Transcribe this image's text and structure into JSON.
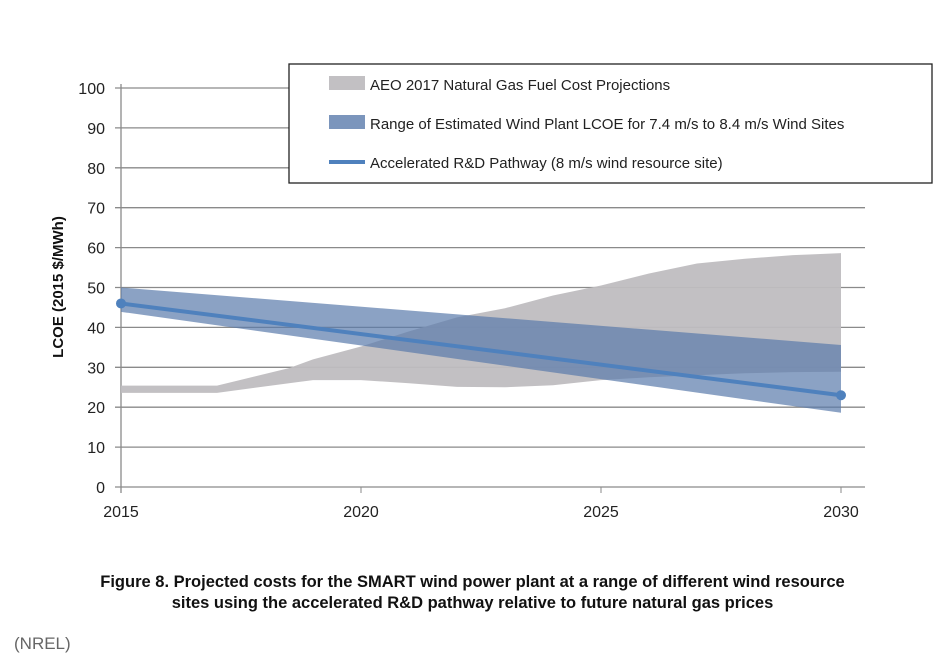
{
  "chart_data": {
    "type": "area",
    "title": "",
    "xlabel": "",
    "ylabel": "LCOE (2015 $/MWh)",
    "xlim": [
      2015,
      2030
    ],
    "ylim": [
      0,
      100
    ],
    "xticks": [
      2015,
      2020,
      2025,
      2030
    ],
    "yticks": [
      0,
      10,
      20,
      30,
      40,
      50,
      60,
      70,
      80,
      90,
      100
    ],
    "grid": "horizontal",
    "legend_position": "top-right",
    "series": [
      {
        "name": "AEO 2017 Natural Gas Fuel Cost Projections",
        "kind": "band",
        "color": "#bfbdc0",
        "x": [
          2015,
          2017,
          2018.5,
          2019,
          2020,
          2021,
          2022,
          2023,
          2024,
          2025,
          2026,
          2027,
          2028,
          2029,
          2030
        ],
        "lower": [
          23.6,
          23.6,
          26,
          26.8,
          26.8,
          26,
          25.1,
          25,
          25.5,
          26.8,
          27.5,
          28,
          28.5,
          28.8,
          28.9
        ],
        "upper": [
          25.4,
          25.4,
          29.8,
          32,
          35.2,
          39,
          42.5,
          44.8,
          48,
          50.5,
          53.5,
          56,
          57.2,
          58.1,
          58.6
        ]
      },
      {
        "name": "Range of Estimated Wind Plant LCOE for 7.4 m/s to 8.4 m/s Wind Sites",
        "kind": "band",
        "color": "#5a7bab",
        "x": [
          2015,
          2030
        ],
        "lower": [
          43.9,
          18.6
        ],
        "upper": [
          50,
          35.6
        ]
      },
      {
        "name": "Accelerated R&D Pathway (8 m/s wind resource site)",
        "kind": "line",
        "color": "#4f81bd",
        "x": [
          2015,
          2030
        ],
        "y": [
          46,
          23
        ]
      }
    ]
  },
  "caption": {
    "line1": "Figure 8. Projected costs for the SMART wind power plant at a range of different wind resource",
    "line2": "sites using the accelerated R&D pathway relative to future natural gas prices"
  },
  "source": "(NREL)"
}
